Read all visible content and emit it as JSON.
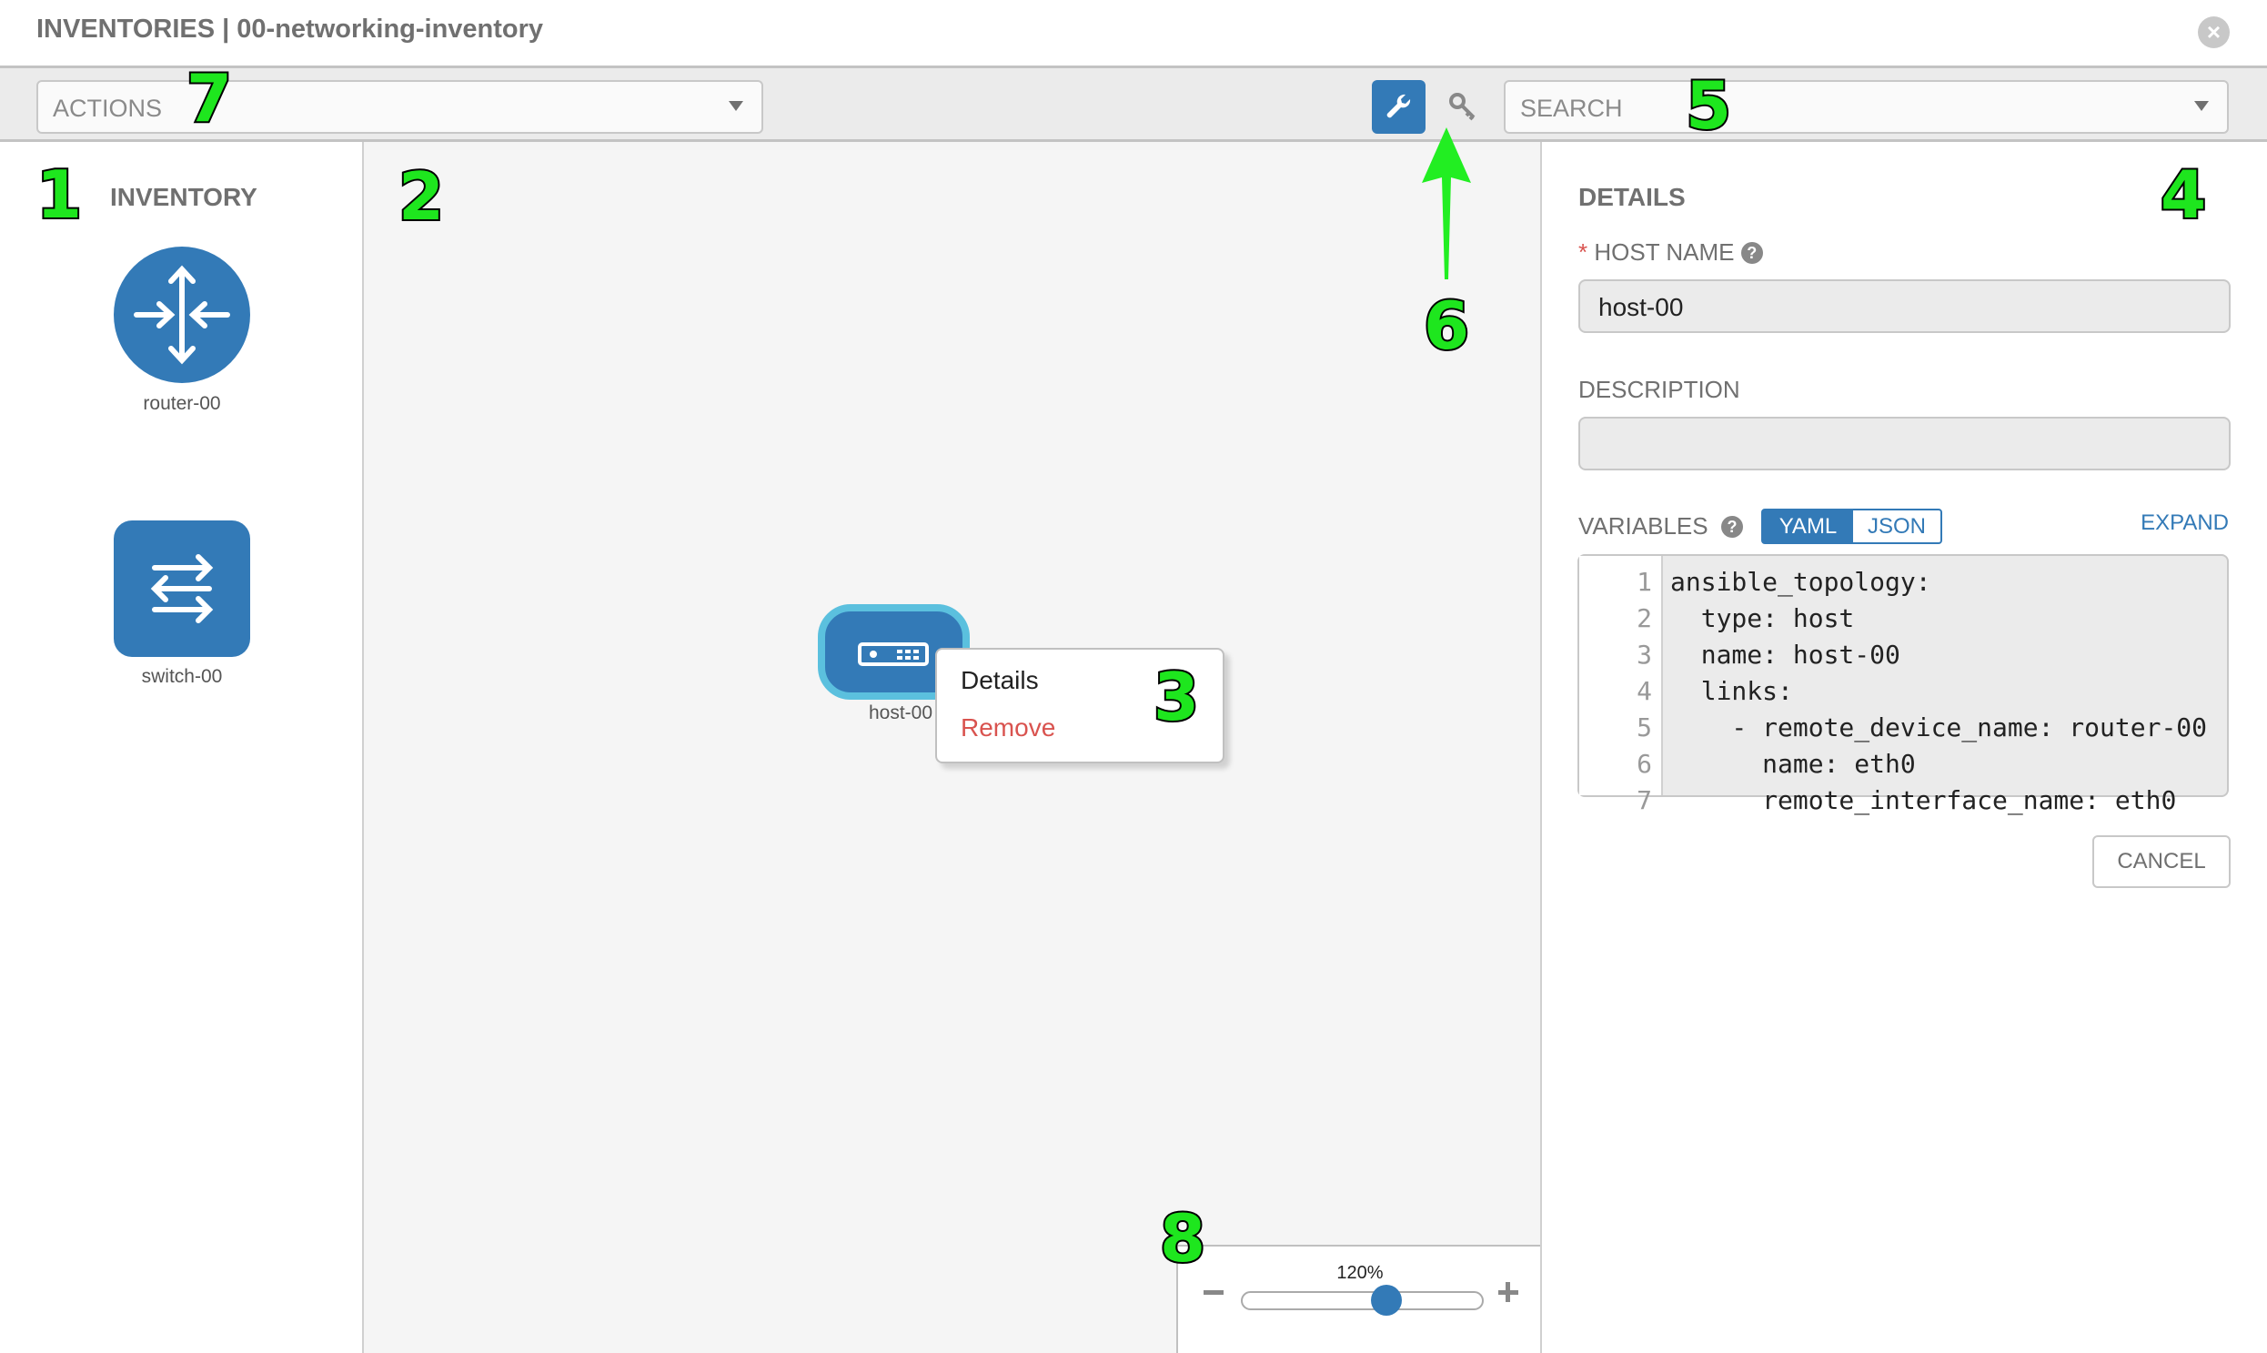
{
  "header": {
    "title": "INVENTORIES | 00-networking-inventory",
    "close_icon": "close-circle-icon"
  },
  "toolbar": {
    "actions_label": "ACTIONS",
    "search_label": "SEARCH",
    "wrench_icon": "wrench-icon",
    "key_icon": "key-icon",
    "accent": "#337ab7"
  },
  "inventory": {
    "title": "INVENTORY",
    "items": [
      {
        "label": "router-00",
        "icon": "router-icon"
      },
      {
        "label": "switch-00",
        "icon": "switch-icon"
      }
    ]
  },
  "canvas": {
    "node": {
      "label": "host-00",
      "icon": "server-icon"
    },
    "context_menu": {
      "details": "Details",
      "remove": "Remove"
    }
  },
  "zoom": {
    "label": "120%",
    "value_percent": 120,
    "slider_fraction": 0.6
  },
  "details": {
    "title": "DETAILS",
    "required_mark": "*",
    "host_name_label": "HOST NAME",
    "host_name_value": "host-00",
    "description_label": "DESCRIPTION",
    "description_value": "",
    "variables_label": "VARIABLES",
    "yaml_label": "YAML",
    "json_label": "JSON",
    "expand_label": "EXPAND",
    "code_lines": [
      {
        "n": "1",
        "text": "ansible_topology:"
      },
      {
        "n": "2",
        "text": "  type: host"
      },
      {
        "n": "3",
        "text": "  name: host-00"
      },
      {
        "n": "4",
        "text": "  links:"
      },
      {
        "n": "5",
        "text": "    - remote_device_name: router-00"
      },
      {
        "n": "6",
        "text": "      name: eth0"
      },
      {
        "n": "7",
        "text": "      remote_interface_name: eth0"
      }
    ],
    "cancel_label": "CANCEL"
  },
  "annotations": [
    "1",
    "2",
    "3",
    "4",
    "5",
    "6",
    "7",
    "8"
  ]
}
